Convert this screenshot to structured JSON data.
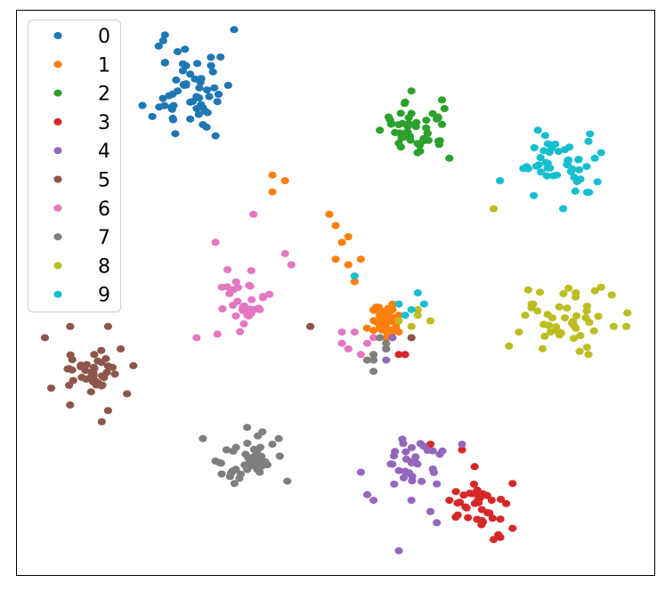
{
  "chart_data": {
    "type": "scatter",
    "title": "",
    "xlabel": "",
    "ylabel": "",
    "xlim": [
      0,
      100
    ],
    "ylim": [
      0,
      100
    ],
    "grid": false,
    "axes_ticks": false,
    "legend_position": "upper-left",
    "series": [
      {
        "name": "0",
        "color": "#1f77b4",
        "points": [
          [
            23,
            96
          ],
          [
            22,
            94
          ],
          [
            25,
            93
          ],
          [
            23,
            91
          ],
          [
            27,
            89
          ],
          [
            26,
            87
          ],
          [
            28,
            85
          ],
          [
            25,
            86
          ],
          [
            27,
            84
          ],
          [
            29,
            83
          ],
          [
            30,
            85
          ],
          [
            29,
            80
          ],
          [
            31,
            78
          ],
          [
            27,
            81
          ],
          [
            33,
            87
          ]
        ],
        "cluster": {
          "cx": 27,
          "cy": 87,
          "sx": 3,
          "sy": 5,
          "n": 45,
          "seed": 11
        }
      },
      {
        "name": "1",
        "color": "#ff7f0e",
        "points": [
          [
            40,
            71
          ],
          [
            42,
            70
          ],
          [
            40,
            68
          ],
          [
            49,
            64
          ],
          [
            50,
            62
          ],
          [
            52,
            60
          ],
          [
            51,
            59
          ],
          [
            50,
            56
          ],
          [
            52,
            55
          ],
          [
            53,
            52
          ],
          [
            54,
            56
          ],
          [
            56,
            47
          ],
          [
            57,
            46
          ],
          [
            58,
            45
          ],
          [
            59,
            47
          ],
          [
            60,
            46
          ],
          [
            58,
            42
          ],
          [
            57,
            44
          ],
          [
            60,
            43
          ],
          [
            59,
            48
          ]
        ],
        "cluster": {
          "cx": 58,
          "cy": 45,
          "sx": 1.2,
          "sy": 1.4,
          "n": 38,
          "seed": 21
        }
      },
      {
        "name": "2",
        "color": "#2ca02c",
        "points": [
          [
            62,
            86
          ],
          [
            61,
            84
          ],
          [
            66,
            81
          ],
          [
            57,
            79
          ],
          [
            68,
            74
          ],
          [
            62,
            82
          ],
          [
            60,
            80
          ]
        ],
        "cluster": {
          "cx": 62,
          "cy": 79,
          "sx": 3,
          "sy": 2.2,
          "n": 42,
          "seed": 31
        }
      },
      {
        "name": "3",
        "color": "#d62728",
        "points": [
          [
            60,
            39
          ],
          [
            61,
            39
          ],
          [
            65,
            23
          ],
          [
            70,
            22
          ],
          [
            78,
            16
          ],
          [
            78,
            8
          ],
          [
            72,
            19
          ],
          [
            69,
            10
          ],
          [
            75,
            6
          ],
          [
            68,
            13
          ]
        ],
        "cluster": {
          "cx": 73,
          "cy": 12,
          "sx": 2.4,
          "sy": 2.2,
          "n": 38,
          "seed": 41
        }
      },
      {
        "name": "4",
        "color": "#9467bd",
        "points": [
          [
            54,
            18
          ],
          [
            55,
            14
          ],
          [
            56,
            13
          ],
          [
            60,
            4
          ],
          [
            65,
            11
          ],
          [
            70,
            23
          ],
          [
            58,
            38
          ],
          [
            58,
            40
          ],
          [
            59,
            42
          ],
          [
            62,
            13
          ],
          [
            66,
            9
          ]
        ],
        "cluster": {
          "cx": 62,
          "cy": 20,
          "sx": 2.6,
          "sy": 2.8,
          "n": 32,
          "seed": 51
        }
      },
      {
        "name": "5",
        "color": "#8c564b",
        "points": [
          [
            4,
            42
          ],
          [
            8,
            44
          ],
          [
            14,
            44
          ],
          [
            16,
            40
          ],
          [
            18,
            37
          ],
          [
            5,
            33
          ],
          [
            8,
            30
          ],
          [
            13,
            27
          ],
          [
            14,
            29
          ],
          [
            17,
            32
          ],
          [
            46,
            44
          ],
          [
            62,
            42
          ]
        ],
        "cluster": {
          "cx": 11,
          "cy": 36,
          "sx": 2.2,
          "sy": 2.0,
          "n": 40,
          "seed": 61
        }
      },
      {
        "name": "6",
        "color": "#e377c2",
        "points": [
          [
            31,
            59
          ],
          [
            43,
            55
          ],
          [
            32,
            51
          ],
          [
            28,
            42
          ],
          [
            37,
            47
          ],
          [
            38,
            47
          ],
          [
            51,
            43
          ],
          [
            51,
            41
          ],
          [
            53,
            43
          ],
          [
            56,
            42
          ],
          [
            55,
            41
          ],
          [
            54,
            39
          ],
          [
            52,
            40
          ],
          [
            37,
            64
          ],
          [
            42,
            57
          ]
        ],
        "cluster": {
          "cx": 36,
          "cy": 48,
          "sx": 2.2,
          "sy": 2.6,
          "n": 30,
          "seed": 71
        }
      },
      {
        "name": "7",
        "color": "#7f7f7f",
        "points": [
          [
            29,
            24
          ],
          [
            31,
            20
          ],
          [
            34,
            16
          ],
          [
            38,
            18
          ],
          [
            40,
            23
          ],
          [
            41,
            24
          ],
          [
            36,
            26
          ],
          [
            55,
            38
          ],
          [
            56,
            38
          ],
          [
            56,
            36
          ],
          [
            58,
            40
          ],
          [
            56,
            39
          ],
          [
            57,
            42
          ],
          [
            58,
            41
          ]
        ],
        "cluster": {
          "cx": 36,
          "cy": 20,
          "sx": 2.0,
          "sy": 2.2,
          "n": 40,
          "seed": 81
        }
      },
      {
        "name": "8",
        "color": "#bcbd22",
        "points": [
          [
            75,
            65
          ],
          [
            80,
            46
          ],
          [
            81,
            48
          ],
          [
            88,
            50
          ],
          [
            92,
            51
          ],
          [
            94,
            44
          ],
          [
            96,
            44
          ],
          [
            90,
            39
          ],
          [
            84,
            43
          ],
          [
            79,
            43
          ],
          [
            60,
            45
          ],
          [
            62,
            44
          ],
          [
            63,
            46
          ],
          [
            65,
            45
          ],
          [
            63,
            47
          ]
        ],
        "cluster": {
          "cx": 86,
          "cy": 45,
          "sx": 3.5,
          "sy": 2.8,
          "n": 42,
          "seed": 91
        }
      },
      {
        "name": "9",
        "color": "#17becf",
        "points": [
          [
            82,
            79
          ],
          [
            87,
            76
          ],
          [
            90,
            77
          ],
          [
            91,
            74
          ],
          [
            92,
            75
          ],
          [
            86,
            65
          ],
          [
            76,
            70
          ],
          [
            85,
            71
          ],
          [
            60,
            48
          ],
          [
            61,
            46
          ],
          [
            63,
            50
          ],
          [
            62,
            47
          ],
          [
            64,
            48
          ],
          [
            53,
            53
          ]
        ],
        "cluster": {
          "cx": 85,
          "cy": 73,
          "sx": 3.2,
          "sy": 2.6,
          "n": 42,
          "seed": 101
        }
      }
    ]
  }
}
